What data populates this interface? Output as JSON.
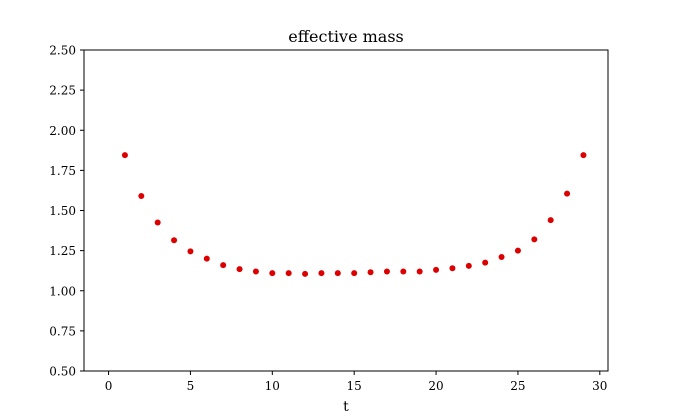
{
  "chart_data": {
    "type": "scatter",
    "title": "effective mass",
    "xlabel": "t",
    "ylabel": "",
    "xlim": [
      -1.5,
      30.5
    ],
    "ylim": [
      0.5,
      2.5
    ],
    "xticks": [
      0,
      5,
      10,
      15,
      20,
      25,
      30
    ],
    "yticks": [
      0.5,
      0.75,
      1.0,
      1.25,
      1.5,
      1.75,
      2.0,
      2.25,
      2.5
    ],
    "ytick_labels": [
      "0.50",
      "0.75",
      "1.00",
      "1.25",
      "1.50",
      "1.75",
      "2.00",
      "2.25",
      "2.50"
    ],
    "grid": false,
    "marker_color": "#dd0000",
    "series": [
      {
        "x": [
          1,
          2,
          3,
          4,
          5,
          6,
          7,
          8,
          9,
          10,
          11,
          12,
          13,
          14,
          15,
          16,
          17,
          18,
          19,
          20,
          21,
          22,
          23,
          24,
          25,
          26,
          27,
          28,
          29
        ],
        "y": [
          1.845,
          1.59,
          1.425,
          1.315,
          1.245,
          1.2,
          1.16,
          1.135,
          1.12,
          1.11,
          1.11,
          1.105,
          1.11,
          1.11,
          1.11,
          1.115,
          1.12,
          1.12,
          1.12,
          1.13,
          1.14,
          1.155,
          1.175,
          1.21,
          1.25,
          1.32,
          1.44,
          1.605,
          1.845
        ]
      }
    ]
  }
}
